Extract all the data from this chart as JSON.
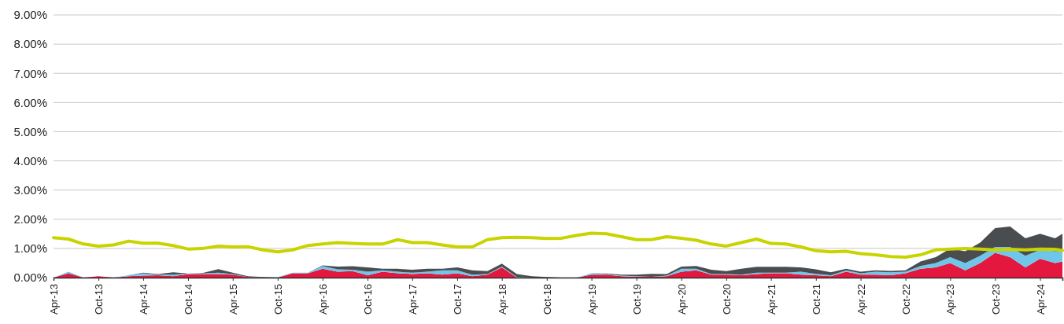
{
  "chart_data": {
    "type": "area",
    "stacked": true,
    "grid": "y",
    "x": [
      "2013-04",
      "2013-06",
      "2013-08",
      "2013-10",
      "2013-12",
      "2014-02",
      "2014-04",
      "2014-06",
      "2014-08",
      "2014-10",
      "2014-12",
      "2015-02",
      "2015-04",
      "2015-06",
      "2015-08",
      "2015-10",
      "2015-12",
      "2016-02",
      "2016-04",
      "2016-06",
      "2016-08",
      "2016-10",
      "2016-12",
      "2017-02",
      "2017-04",
      "2017-06",
      "2017-08",
      "2017-10",
      "2017-12",
      "2018-02",
      "2018-04",
      "2018-06",
      "2018-08",
      "2018-10",
      "2018-12",
      "2019-02",
      "2019-04",
      "2019-06",
      "2019-08",
      "2019-10",
      "2019-12",
      "2020-02",
      "2020-04",
      "2020-06",
      "2020-08",
      "2020-10",
      "2020-12",
      "2021-02",
      "2021-04",
      "2021-06",
      "2021-08",
      "2021-10",
      "2021-12",
      "2022-02",
      "2022-04",
      "2022-06",
      "2022-08",
      "2022-10",
      "2022-12",
      "2023-02",
      "2023-04",
      "2023-06",
      "2023-08",
      "2023-10",
      "2023-12",
      "2024-02",
      "2024-04",
      "2024-06",
      "2024-07"
    ],
    "series": [
      {
        "color": "#e4173e",
        "values": [
          0,
          0.15,
          0,
          0.05,
          0,
          0.05,
          0.07,
          0.08,
          0.05,
          0.12,
          0.12,
          0.12,
          0.1,
          0.02,
          0,
          0,
          0.15,
          0.15,
          0.3,
          0.2,
          0.22,
          0.08,
          0.2,
          0.15,
          0.12,
          0.15,
          0.1,
          0.15,
          0.05,
          0.1,
          0.35,
          0,
          0,
          0,
          0,
          0,
          0.1,
          0.1,
          0.05,
          0.03,
          0.03,
          0.05,
          0.2,
          0.25,
          0.1,
          0.1,
          0.08,
          0.12,
          0.15,
          0.15,
          0.1,
          0.08,
          0.05,
          0.2,
          0.1,
          0.1,
          0.08,
          0.15,
          0.3,
          0.35,
          0.5,
          0.25,
          0.5,
          0.85,
          0.7,
          0.35,
          0.65,
          0.5,
          0.55
        ]
      },
      {
        "color": "#6ec6ea",
        "values": [
          0,
          0.05,
          0,
          0,
          0,
          0.03,
          0.08,
          0.02,
          0.05,
          0.02,
          0.02,
          0.05,
          0.02,
          0,
          0,
          0.02,
          0.02,
          0.02,
          0.1,
          0.08,
          0.05,
          0.12,
          0.05,
          0.05,
          0.05,
          0.05,
          0.15,
          0.1,
          0.05,
          0.02,
          0.03,
          0.02,
          0,
          0,
          0,
          0,
          0.05,
          0.02,
          0.02,
          0.02,
          0,
          0.02,
          0.1,
          0.05,
          0.02,
          0.02,
          0.02,
          0.05,
          0.02,
          0.02,
          0.1,
          0.05,
          0.03,
          0.05,
          0.05,
          0.1,
          0.1,
          0.05,
          0.1,
          0.15,
          0.2,
          0.25,
          0.25,
          0.2,
          0.35,
          0.4,
          0.3,
          0.4,
          0.35
        ]
      },
      {
        "color": "#4a4d50",
        "values": [
          0,
          0,
          0,
          0,
          0,
          0,
          0.02,
          0.02,
          0.08,
          0,
          0.02,
          0.12,
          0.05,
          0.03,
          0.02,
          0,
          0,
          0,
          0.02,
          0.1,
          0.12,
          0.15,
          0.05,
          0.1,
          0.1,
          0.1,
          0.05,
          0.1,
          0.15,
          0.1,
          0.1,
          0.1,
          0.05,
          0.02,
          0,
          0,
          0,
          0.02,
          0.03,
          0.05,
          0.1,
          0.05,
          0.08,
          0.1,
          0.15,
          0.1,
          0.2,
          0.2,
          0.2,
          0.2,
          0.15,
          0.15,
          0.1,
          0.05,
          0.05,
          0.05,
          0.05,
          0.05,
          0.15,
          0.2,
          0.3,
          0.4,
          0.45,
          0.65,
          0.7,
          0.6,
          0.55,
          0.45,
          0.6
        ]
      },
      {
        "type": "line",
        "color": "#c8d400",
        "values": [
          1.37,
          1.32,
          1.15,
          1.08,
          1.12,
          1.25,
          1.18,
          1.18,
          1.1,
          0.98,
          1.0,
          1.08,
          1.05,
          1.06,
          0.95,
          0.88,
          0.95,
          1.1,
          1.15,
          1.2,
          1.17,
          1.15,
          1.15,
          1.3,
          1.2,
          1.2,
          1.12,
          1.05,
          1.05,
          1.3,
          1.37,
          1.38,
          1.37,
          1.34,
          1.35,
          1.45,
          1.52,
          1.5,
          1.4,
          1.3,
          1.3,
          1.4,
          1.35,
          1.28,
          1.15,
          1.08,
          1.2,
          1.32,
          1.17,
          1.15,
          1.05,
          0.92,
          0.88,
          0.9,
          0.82,
          0.78,
          0.72,
          0.7,
          0.78,
          0.95,
          0.98,
          1.0,
          0.98,
          0.95,
          0.97,
          0.95,
          0.98,
          0.97,
          0.93
        ]
      }
    ],
    "xlim": [
      "2013-04",
      "2024-07"
    ],
    "xticks": [
      {
        "value": "2013-04",
        "label": "Apr-13"
      },
      {
        "value": "2013-10",
        "label": "Oct-13"
      },
      {
        "value": "2014-04",
        "label": "Apr-14"
      },
      {
        "value": "2014-10",
        "label": "Oct-14"
      },
      {
        "value": "2015-04",
        "label": "Apr-15"
      },
      {
        "value": "2015-10",
        "label": "Oct-15"
      },
      {
        "value": "2016-04",
        "label": "Apr-16"
      },
      {
        "value": "2016-10",
        "label": "Oct-16"
      },
      {
        "value": "2017-04",
        "label": "Apr-17"
      },
      {
        "value": "2017-10",
        "label": "Oct-17"
      },
      {
        "value": "2018-04",
        "label": "Apr-18"
      },
      {
        "value": "2018-10",
        "label": "Oct-18"
      },
      {
        "value": "2019-04",
        "label": "Apr-19"
      },
      {
        "value": "2019-10",
        "label": "Oct-19"
      },
      {
        "value": "2020-04",
        "label": "Apr-20"
      },
      {
        "value": "2020-10",
        "label": "Oct-20"
      },
      {
        "value": "2021-04",
        "label": "Apr-21"
      },
      {
        "value": "2021-10",
        "label": "Oct-21"
      },
      {
        "value": "2022-04",
        "label": "Apr-22"
      },
      {
        "value": "2022-10",
        "label": "Oct-22"
      },
      {
        "value": "2023-04",
        "label": "Apr-23"
      },
      {
        "value": "2023-10",
        "label": "Oct-23"
      },
      {
        "value": "2024-04",
        "label": "Apr-24"
      }
    ],
    "ylim": [
      0,
      9
    ],
    "yticks": [
      {
        "value": 0,
        "label": "0.00%"
      },
      {
        "value": 1,
        "label": "1.00%"
      },
      {
        "value": 2,
        "label": "2.00%"
      },
      {
        "value": 3,
        "label": "3.00%"
      },
      {
        "value": 4,
        "label": "4.00%"
      },
      {
        "value": 5,
        "label": "5.00%"
      },
      {
        "value": 6,
        "label": "6.00%"
      },
      {
        "value": 7,
        "label": "7.00%"
      },
      {
        "value": 8,
        "label": "8.00%"
      },
      {
        "value": 9,
        "label": "9.00%"
      }
    ]
  }
}
